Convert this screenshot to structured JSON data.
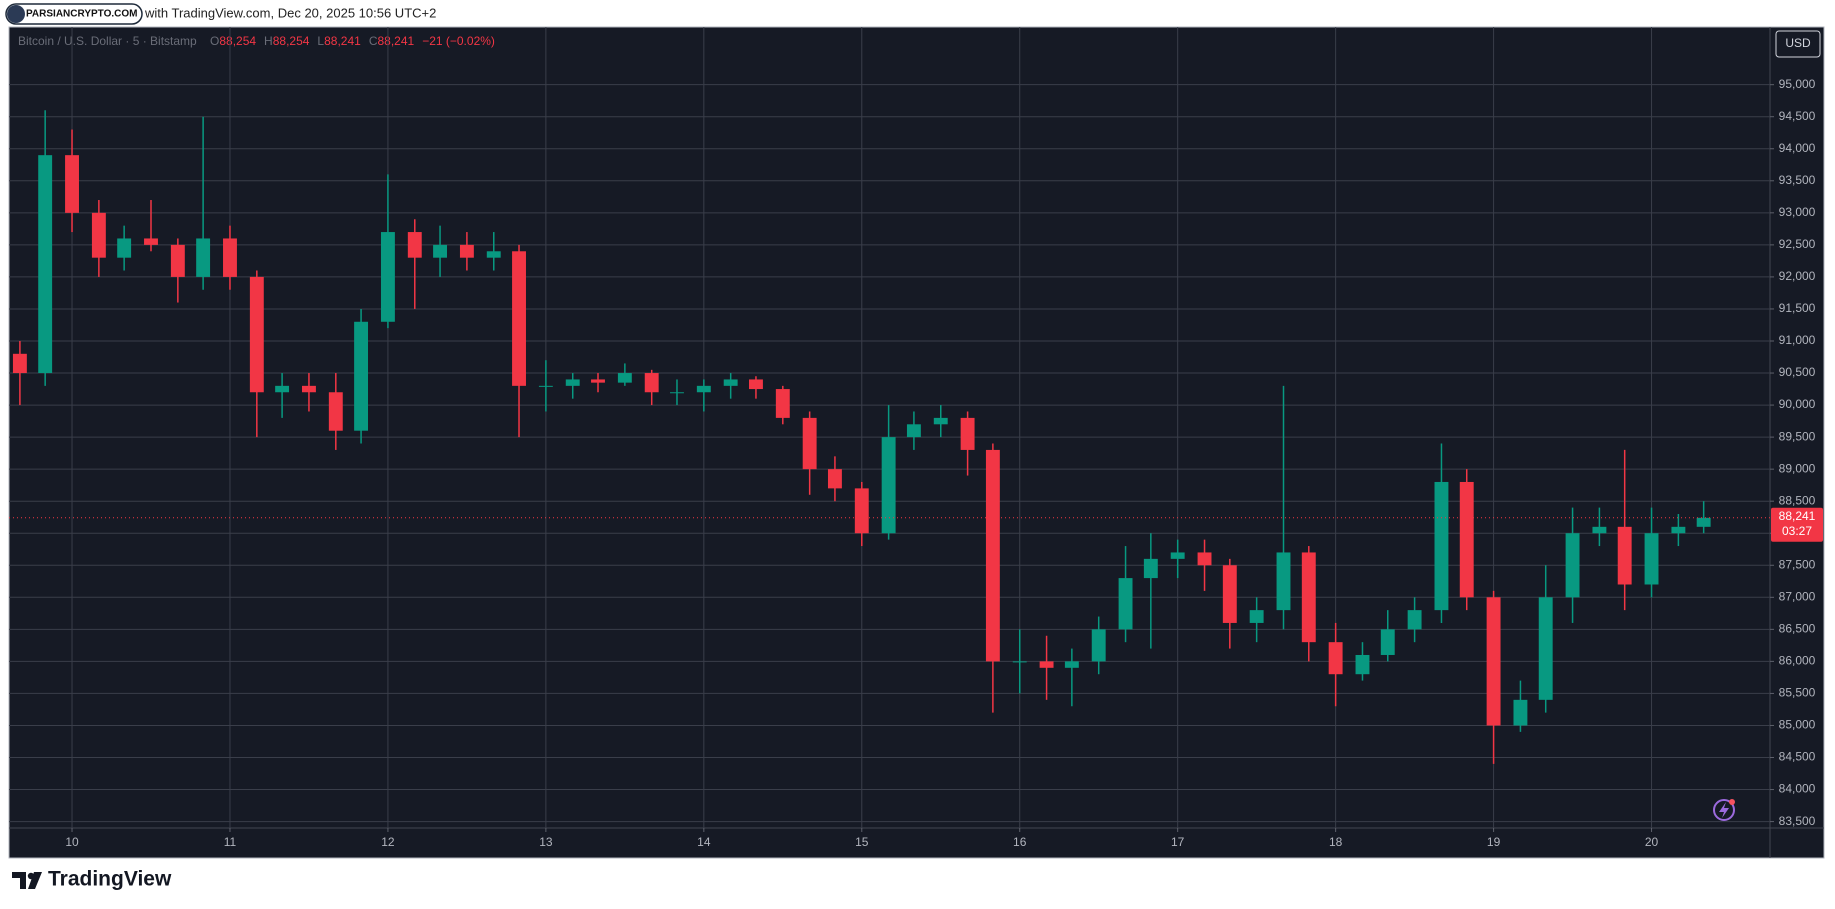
{
  "watermark": "PARSIANCRYPTO.COM",
  "published": "with TradingView.com, Dec 20, 2025 10:56 UTC+2",
  "brand": "TradingView",
  "chart_data": {
    "type": "candlestick",
    "title": "Bitcoin / U.S. Dollar · 5 · Bitstamp",
    "ohlc_legend": [
      {
        "key": "O",
        "value": 88254,
        "label": "88,254"
      },
      {
        "key": "H",
        "value": 88254,
        "label": "88,254"
      },
      {
        "key": "L",
        "value": 88241,
        "label": "88,241"
      },
      {
        "key": "C",
        "value": 88241,
        "label": "88,241"
      }
    ],
    "change": "−21 (−0.02%)",
    "currency": "USD",
    "last_price": {
      "value": 88241,
      "label": "88,241"
    },
    "countdown": "03:27",
    "up_color": "#089981",
    "down_color": "#f23645",
    "grid": true,
    "x": [
      9.67,
      9.83,
      10.0,
      10.17,
      10.33,
      10.5,
      10.67,
      10.83,
      11.0,
      11.17,
      11.33,
      11.5,
      11.67,
      11.83,
      12.0,
      12.17,
      12.33,
      12.5,
      12.67,
      12.83,
      13.0,
      13.17,
      13.33,
      13.5,
      13.67,
      13.83,
      14.0,
      14.17,
      14.33,
      14.5,
      14.67,
      14.83,
      15.0,
      15.17,
      15.33,
      15.5,
      15.67,
      15.83,
      16.0,
      16.17,
      16.33,
      16.5,
      16.67,
      16.83,
      17.0,
      17.17,
      17.33,
      17.5,
      17.67,
      17.83,
      18.0,
      18.17,
      18.33,
      18.5,
      18.67,
      18.83,
      19.0,
      19.17,
      19.33,
      19.5,
      19.67,
      19.83,
      20.0,
      20.17,
      20.33
    ],
    "open": [
      90800,
      90500,
      93900,
      93000,
      92300,
      92600,
      92500,
      92000,
      92600,
      92000,
      90200,
      90300,
      90200,
      89600,
      91300,
      92700,
      92300,
      92500,
      92300,
      92400,
      90300,
      90300,
      90400,
      90350,
      90500,
      90200,
      90200,
      90300,
      90400,
      90250,
      89800,
      89000,
      88700,
      88000,
      89500,
      89700,
      89800,
      89300,
      86000,
      86000,
      85900,
      86000,
      86500,
      87300,
      87600,
      87700,
      87500,
      86600,
      86800,
      87700,
      86300,
      85800,
      86100,
      86500,
      86800,
      88800,
      87000,
      85000,
      85400,
      87000,
      88000,
      88100,
      87200,
      88000,
      88100
    ],
    "high": [
      91000,
      94600,
      94300,
      93200,
      92800,
      93200,
      92600,
      94500,
      92800,
      92100,
      90500,
      90500,
      90500,
      91500,
      93600,
      92900,
      92800,
      92700,
      92700,
      92500,
      90700,
      90500,
      90500,
      90650,
      90550,
      90400,
      90400,
      90500,
      90450,
      90300,
      89900,
      89200,
      88800,
      90000,
      89900,
      90000,
      89900,
      89400,
      86500,
      86400,
      86200,
      86700,
      87800,
      88000,
      87900,
      87900,
      87600,
      87000,
      90300,
      87800,
      86600,
      86300,
      86800,
      87000,
      89400,
      89000,
      87100,
      85700,
      87500,
      88400,
      88400,
      89300,
      88400,
      88300,
      88500
    ],
    "low": [
      90000,
      90300,
      92700,
      92000,
      92100,
      92400,
      91600,
      91800,
      91800,
      89500,
      89800,
      89900,
      89300,
      89400,
      91200,
      91500,
      92000,
      92100,
      92100,
      89500,
      89900,
      90100,
      90200,
      90300,
      90000,
      90000,
      89900,
      90100,
      90100,
      89700,
      88600,
      88500,
      87800,
      87900,
      89300,
      89500,
      88900,
      85200,
      85500,
      85400,
      85300,
      85800,
      86300,
      86200,
      87300,
      87100,
      86200,
      86300,
      86500,
      86000,
      85300,
      85700,
      86000,
      86300,
      86600,
      86800,
      84400,
      84900,
      85200,
      86600,
      87800,
      86800,
      87000,
      87800,
      88000
    ],
    "close": [
      90500,
      93900,
      93000,
      92300,
      92600,
      92500,
      92000,
      92600,
      92000,
      90200,
      90300,
      90200,
      89600,
      91300,
      92700,
      92300,
      92500,
      92300,
      92400,
      90300,
      90300,
      90400,
      90350,
      90500,
      90200,
      90200,
      90300,
      90400,
      90250,
      89800,
      89000,
      88700,
      88000,
      89500,
      89700,
      89800,
      89300,
      86000,
      86000,
      85900,
      86000,
      86500,
      87300,
      87600,
      87700,
      87500,
      86600,
      86800,
      87700,
      86300,
      85800,
      86100,
      86500,
      86800,
      88800,
      87000,
      85000,
      85400,
      87000,
      88000,
      88100,
      87200,
      88000,
      88100,
      88241
    ],
    "xlim": [
      9.62,
      20.75
    ],
    "xticks": [
      10,
      11,
      12,
      13,
      14,
      15,
      16,
      17,
      18,
      19,
      20
    ],
    "ylim": [
      83400,
      95900
    ],
    "yticks": [
      {
        "value": 83500,
        "label": "83,500"
      },
      {
        "value": 84000,
        "label": "84,000"
      },
      {
        "value": 84500,
        "label": "84,500"
      },
      {
        "value": 85000,
        "label": "85,000"
      },
      {
        "value": 85500,
        "label": "85,500"
      },
      {
        "value": 86000,
        "label": "86,000"
      },
      {
        "value": 86500,
        "label": "86,500"
      },
      {
        "value": 87000,
        "label": "87,000"
      },
      {
        "value": 87500,
        "label": "87,500"
      },
      {
        "value": 88000,
        "label": "88,000"
      },
      {
        "value": 88500,
        "label": "88,500"
      },
      {
        "value": 89000,
        "label": "89,000"
      },
      {
        "value": 89500,
        "label": "89,500"
      },
      {
        "value": 90000,
        "label": "90,000"
      },
      {
        "value": 90500,
        "label": "90,500"
      },
      {
        "value": 91000,
        "label": "91,000"
      },
      {
        "value": 91500,
        "label": "91,500"
      },
      {
        "value": 92000,
        "label": "92,000"
      },
      {
        "value": 92500,
        "label": "92,500"
      },
      {
        "value": 93000,
        "label": "93,000"
      },
      {
        "value": 93500,
        "label": "93,500"
      },
      {
        "value": 94000,
        "label": "94,000"
      },
      {
        "value": 94500,
        "label": "94,500"
      },
      {
        "value": 95000,
        "label": "95,000"
      }
    ]
  }
}
